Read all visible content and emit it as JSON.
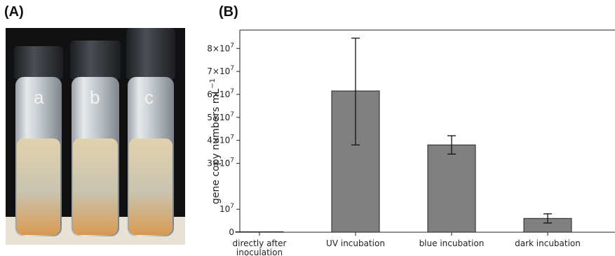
{
  "panels": {
    "a_label": "(A)",
    "b_label": "(B)"
  },
  "photo": {
    "vial_labels": [
      "a",
      "b",
      "c"
    ],
    "colors": {
      "background": "#0f0f0f",
      "glass": "#c8ced2",
      "cap": "#2c2f33",
      "liquid_top": "#d9c9a6",
      "liquid_bottom": "#d9a25c",
      "table": "#e8e0d2"
    }
  },
  "chart_data": {
    "type": "bar",
    "ylabel_base": "gene copy numbers mL",
    "ylabel_sup": "−1",
    "categories": [
      [
        "directly after",
        "inoculation"
      ],
      [
        "UV incubation"
      ],
      [
        "blue incubation"
      ],
      [
        "dark incubation"
      ]
    ],
    "values": [
      200000,
      61500000,
      38000000,
      6000000
    ],
    "error_low": [
      200000,
      38000000,
      34000000,
      4000000
    ],
    "error_high": [
      200000,
      84500000,
      42000000,
      8000000
    ],
    "yticks": [
      0,
      10000000,
      30000000,
      40000000,
      50000000,
      60000000,
      70000000,
      80000000
    ],
    "ytick_labels": [
      {
        "base": "0",
        "exp": ""
      },
      {
        "base": "10",
        "exp": "7"
      },
      {
        "base": "3×10",
        "exp": "7"
      },
      {
        "base": "4×10",
        "exp": "7"
      },
      {
        "base": "5×10",
        "exp": "7"
      },
      {
        "base": "6×10",
        "exp": "7"
      },
      {
        "base": "7×10",
        "exp": "7"
      },
      {
        "base": "8×10",
        "exp": "7"
      }
    ],
    "ylim": [
      0,
      88000000
    ],
    "bar_color": "#808080",
    "bar_edge": "#222222"
  }
}
